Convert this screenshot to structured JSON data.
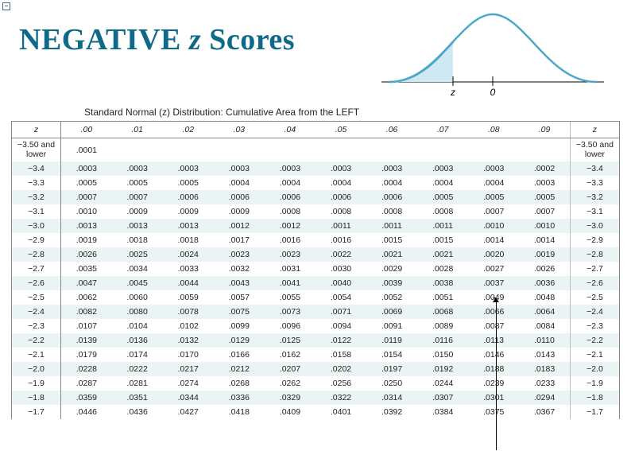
{
  "title": {
    "neg_word": "NEGATIVE ",
    "z_word": "z",
    "scores_word": " Scores",
    "color": "#0f6a8a"
  },
  "caption": "Standard Normal (z) Distribution: Cumulative Area from the LEFT",
  "curve": {
    "stroke_color": "#4aa9c9",
    "fill_color": "#cfe8f1",
    "axis_color": "#000000",
    "z_label": "z",
    "zero_label": "0"
  },
  "table": {
    "z_header": "z",
    "col_headers": [
      ".00",
      ".01",
      ".02",
      ".03",
      ".04",
      ".05",
      ".06",
      ".07",
      ".08",
      ".09"
    ],
    "first_row_label": "−3.50 and lower",
    "first_row_value": ".0001",
    "rows": [
      {
        "z": "−3.4",
        "v": [
          ".0003",
          ".0003",
          ".0003",
          ".0003",
          ".0003",
          ".0003",
          ".0003",
          ".0003",
          ".0003",
          ".0002"
        ]
      },
      {
        "z": "−3.3",
        "v": [
          ".0005",
          ".0005",
          ".0005",
          ".0004",
          ".0004",
          ".0004",
          ".0004",
          ".0004",
          ".0004",
          ".0003"
        ]
      },
      {
        "z": "−3.2",
        "v": [
          ".0007",
          ".0007",
          ".0006",
          ".0006",
          ".0006",
          ".0006",
          ".0006",
          ".0005",
          ".0005",
          ".0005"
        ]
      },
      {
        "z": "−3.1",
        "v": [
          ".0010",
          ".0009",
          ".0009",
          ".0009",
          ".0008",
          ".0008",
          ".0008",
          ".0008",
          ".0007",
          ".0007"
        ]
      },
      {
        "z": "−3.0",
        "v": [
          ".0013",
          ".0013",
          ".0013",
          ".0012",
          ".0012",
          ".0011",
          ".0011",
          ".0011",
          ".0010",
          ".0010"
        ]
      },
      {
        "z": "−2.9",
        "v": [
          ".0019",
          ".0018",
          ".0018",
          ".0017",
          ".0016",
          ".0016",
          ".0015",
          ".0015",
          ".0014",
          ".0014"
        ]
      },
      {
        "z": "−2.8",
        "v": [
          ".0026",
          ".0025",
          ".0024",
          ".0023",
          ".0023",
          ".0022",
          ".0021",
          ".0021",
          ".0020",
          ".0019"
        ]
      },
      {
        "z": "−2.7",
        "v": [
          ".0035",
          ".0034",
          ".0033",
          ".0032",
          ".0031",
          ".0030",
          ".0029",
          ".0028",
          ".0027",
          ".0026"
        ]
      },
      {
        "z": "−2.6",
        "v": [
          ".0047",
          ".0045",
          ".0044",
          ".0043",
          ".0041",
          ".0040",
          ".0039",
          ".0038",
          ".0037",
          ".0036"
        ]
      },
      {
        "z": "−2.5",
        "v": [
          ".0062",
          ".0060",
          ".0059",
          ".0057",
          ".0055",
          ".0054",
          ".0052",
          ".0051",
          ".0049",
          ".0048"
        ]
      },
      {
        "z": "−2.4",
        "v": [
          ".0082",
          ".0080",
          ".0078",
          ".0075",
          ".0073",
          ".0071",
          ".0069",
          ".0068",
          ".0066",
          ".0064"
        ]
      },
      {
        "z": "−2.3",
        "v": [
          ".0107",
          ".0104",
          ".0102",
          ".0099",
          ".0096",
          ".0094",
          ".0091",
          ".0089",
          ".0087",
          ".0084"
        ]
      },
      {
        "z": "−2.2",
        "v": [
          ".0139",
          ".0136",
          ".0132",
          ".0129",
          ".0125",
          ".0122",
          ".0119",
          ".0116",
          ".0113",
          ".0110"
        ]
      },
      {
        "z": "−2.1",
        "v": [
          ".0179",
          ".0174",
          ".0170",
          ".0166",
          ".0162",
          ".0158",
          ".0154",
          ".0150",
          ".0146",
          ".0143"
        ]
      },
      {
        "z": "−2.0",
        "v": [
          ".0228",
          ".0222",
          ".0217",
          ".0212",
          ".0207",
          ".0202",
          ".0197",
          ".0192",
          ".0188",
          ".0183"
        ]
      },
      {
        "z": "−1.9",
        "v": [
          ".0287",
          ".0281",
          ".0274",
          ".0268",
          ".0262",
          ".0256",
          ".0250",
          ".0244",
          ".0239",
          ".0233"
        ]
      },
      {
        "z": "−1.8",
        "v": [
          ".0359",
          ".0351",
          ".0344",
          ".0336",
          ".0329",
          ".0322",
          ".0314",
          ".0307",
          ".0301",
          ".0294"
        ]
      },
      {
        "z": "−1.7",
        "v": [
          ".0446",
          ".0436",
          ".0427",
          ".0418",
          ".0409",
          ".0401",
          ".0392",
          ".0384",
          ".0375",
          ".0367"
        ]
      }
    ],
    "row_alt_bg": "#eaf4f4",
    "border_color": "#888888"
  }
}
